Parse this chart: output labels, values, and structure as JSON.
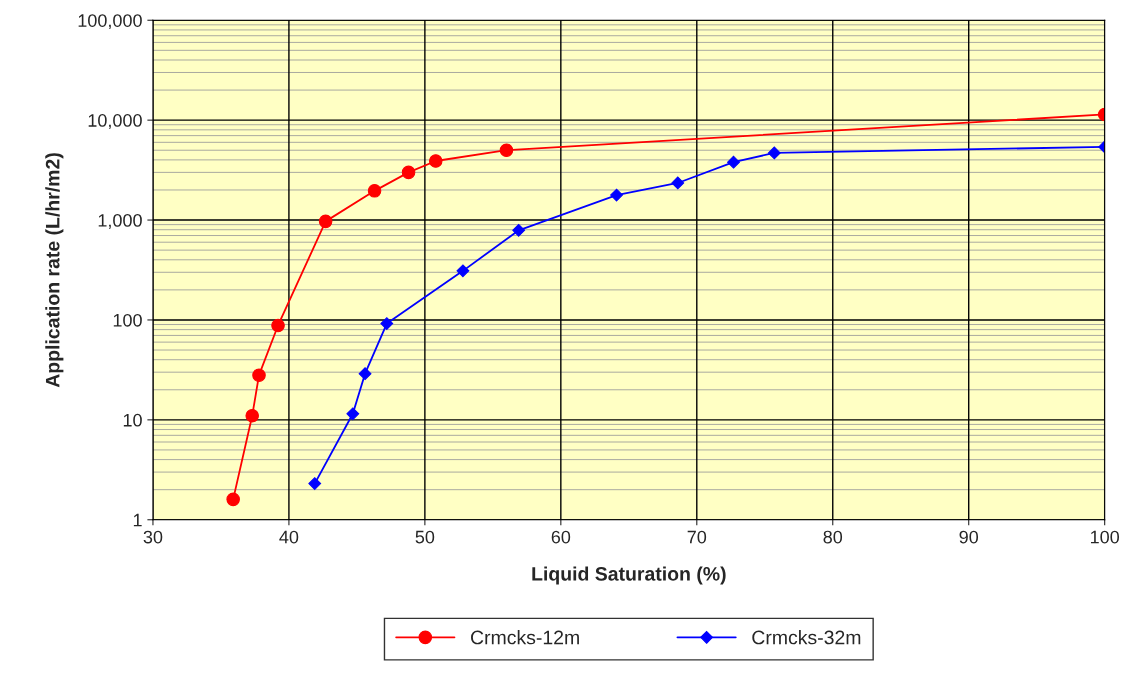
{
  "chart_data": {
    "type": "line",
    "xlabel": "Liquid Saturation (%)",
    "ylabel": "Application rate (L/hr/m2)",
    "xlim": [
      30,
      100
    ],
    "xticks": [
      30,
      40,
      50,
      60,
      70,
      80,
      90,
      100
    ],
    "ylim": [
      1,
      100000
    ],
    "yticks": [
      {
        "value": 1,
        "label": "1"
      },
      {
        "value": 10,
        "label": "10"
      },
      {
        "value": 100,
        "label": "100"
      },
      {
        "value": 1000,
        "label": "1,000"
      },
      {
        "value": 10000,
        "label": "10,000"
      },
      {
        "value": 100000,
        "label": "100,000"
      }
    ],
    "log": "y",
    "grid": true,
    "legend": "bottom",
    "series": [
      {
        "name": "Crmcks-12m",
        "color": "#ff0000",
        "marker": "circle",
        "x": [
          35.9,
          37.3,
          37.8,
          39.2,
          42.7,
          46.3,
          48.8,
          50.8,
          56.0,
          100
        ],
        "values": [
          1.6,
          11,
          28,
          88,
          970,
          1960,
          3000,
          3900,
          5000,
          11400
        ]
      },
      {
        "name": "Crmcks-32m",
        "color": "#0000ff",
        "marker": "diamond",
        "x": [
          41.9,
          44.7,
          45.6,
          47.2,
          52.8,
          56.9,
          64.1,
          68.6,
          72.7,
          75.7,
          100
        ],
        "values": [
          2.3,
          11.5,
          29,
          92,
          310,
          790,
          1780,
          2350,
          3800,
          4700,
          5400
        ]
      }
    ]
  }
}
